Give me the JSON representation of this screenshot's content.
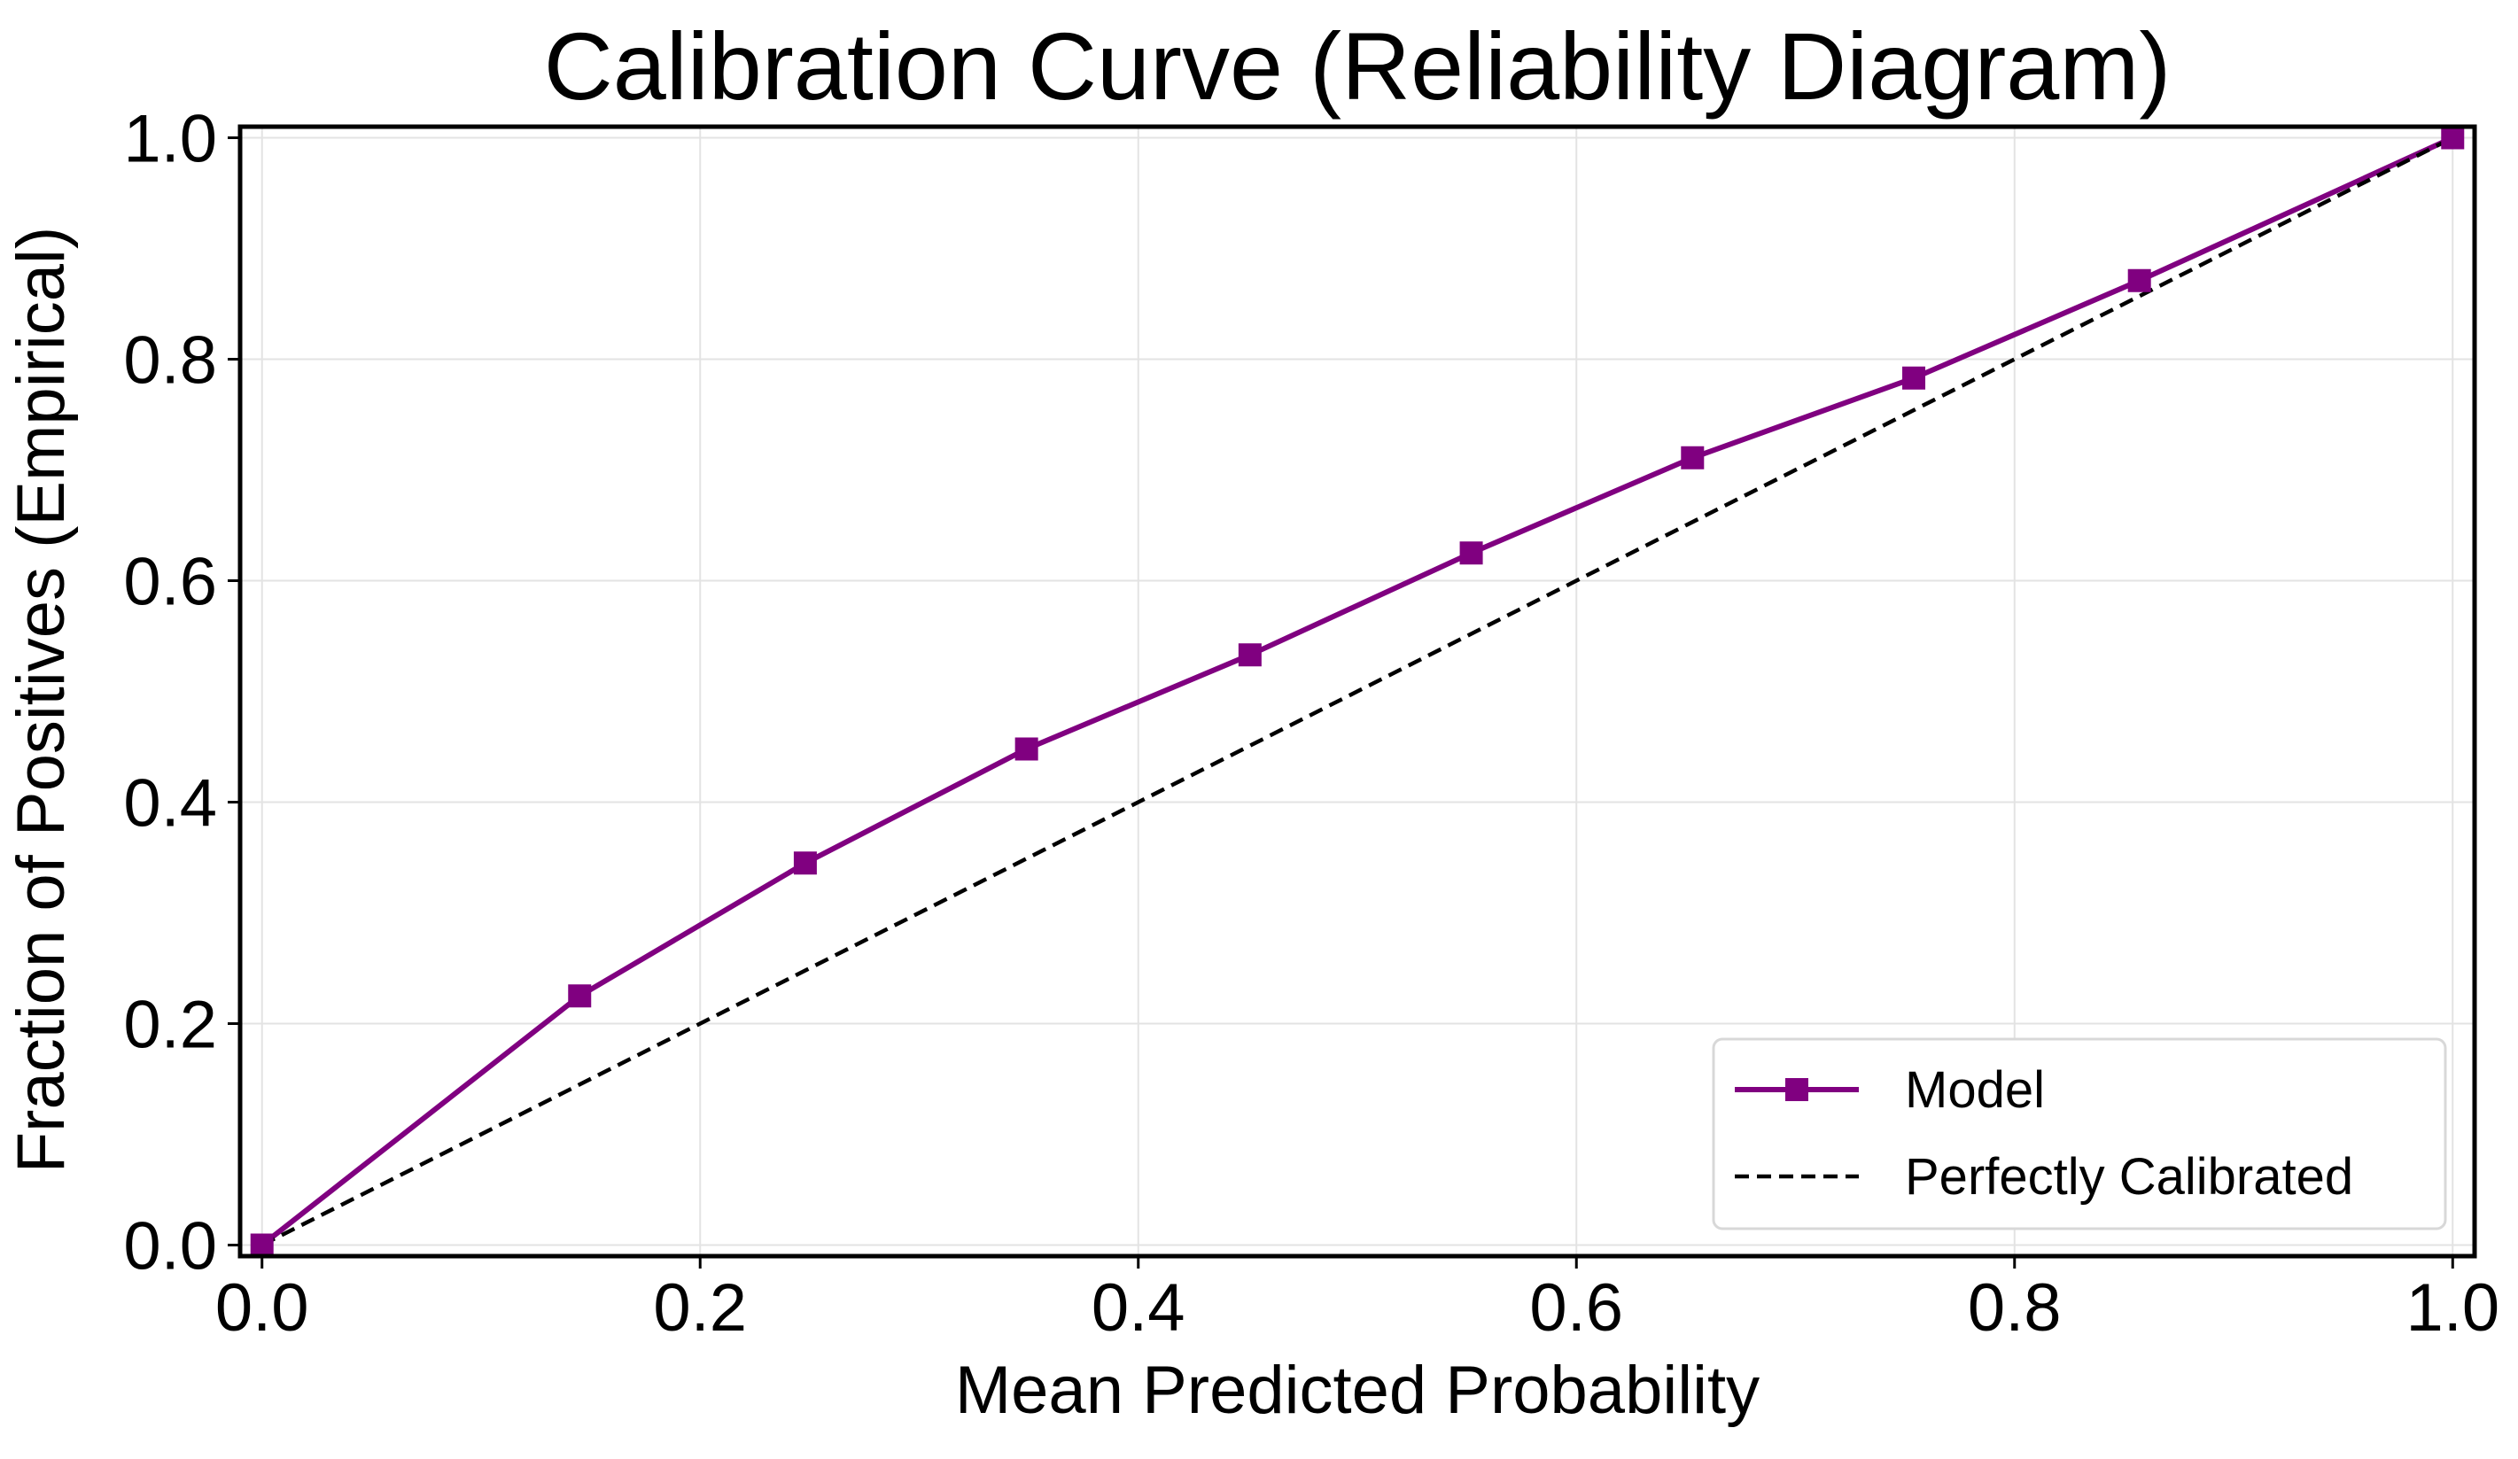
{
  "colors": {
    "model": "#800080",
    "reference": "#000000",
    "grid": "#e3e3e3",
    "axes": "#000000",
    "legend_border": "#d8d8d8"
  },
  "chart_data": {
    "type": "line",
    "title": "Calibration Curve (Reliability Diagram)",
    "xlabel": "Mean Predicted Probability",
    "ylabel": "Fraction of Positives (Empirical)",
    "xlim": [
      -0.01,
      1.01
    ],
    "ylim": [
      -0.01,
      1.01
    ],
    "xticks": [
      0.0,
      0.2,
      0.4,
      0.6,
      0.8,
      1.0
    ],
    "xtick_labels": [
      "0.0",
      "0.2",
      "0.4",
      "0.6",
      "0.8",
      "1.0"
    ],
    "yticks": [
      0.0,
      0.2,
      0.4,
      0.6,
      0.8,
      1.0
    ],
    "ytick_labels": [
      "0.0",
      "0.2",
      "0.4",
      "0.6",
      "0.8",
      "1.0"
    ],
    "grid": true,
    "legend_position": "lower-right",
    "series": [
      {
        "name": "Model",
        "style": "solid",
        "marker": "square",
        "color": "#800080",
        "x": [
          0.0,
          0.145,
          0.248,
          0.349,
          0.451,
          0.552,
          0.653,
          0.754,
          0.857,
          1.0
        ],
        "y": [
          0.0,
          0.225,
          0.345,
          0.448,
          0.533,
          0.625,
          0.711,
          0.783,
          0.871,
          1.0
        ]
      },
      {
        "name": "Perfectly Calibrated",
        "style": "dashed",
        "marker": "none",
        "color": "#000000",
        "x": [
          0.0,
          1.0
        ],
        "y": [
          0.0,
          1.0
        ]
      }
    ]
  }
}
